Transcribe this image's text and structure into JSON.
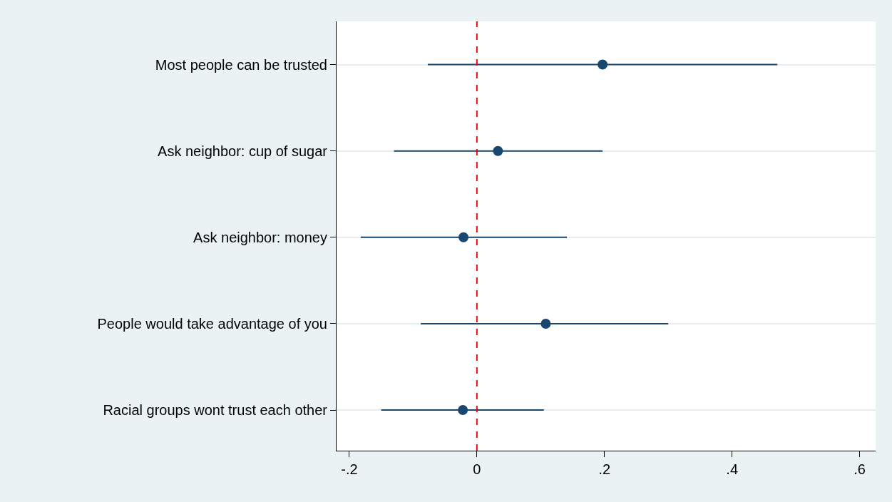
{
  "chart_data": {
    "type": "scatter",
    "orientation": "horizontal",
    "categories": [
      "Most people can be trusted",
      "Ask neighbor: cup of sugar",
      "Ask neighbor: money",
      "People would take advantage of you",
      "Racial groups wont trust each other"
    ],
    "series": [
      {
        "color": "#1a476f",
        "values": [
          0.197,
          0.033,
          -0.021,
          0.108,
          -0.022
        ],
        "errors": [
          [
            -0.077,
            0.471
          ],
          [
            -0.13,
            0.197
          ],
          [
            -0.182,
            0.141
          ],
          [
            -0.088,
            0.3
          ],
          [
            -0.15,
            0.105
          ]
        ]
      }
    ],
    "xlim": [
      -0.22,
      0.625
    ],
    "xticks": [
      {
        "value": -0.2,
        "label": "-.2"
      },
      0,
      {
        "value": 0.2,
        "label": ".2"
      },
      {
        "value": 0.4,
        "label": ".4"
      },
      {
        "value": 0.6,
        "label": ".6"
      }
    ],
    "ref_lines": [
      {
        "axis": "x",
        "value": 0,
        "color": "#ff0000",
        "line_style": "dashed"
      }
    ],
    "grid": "y",
    "marker": "circle"
  }
}
